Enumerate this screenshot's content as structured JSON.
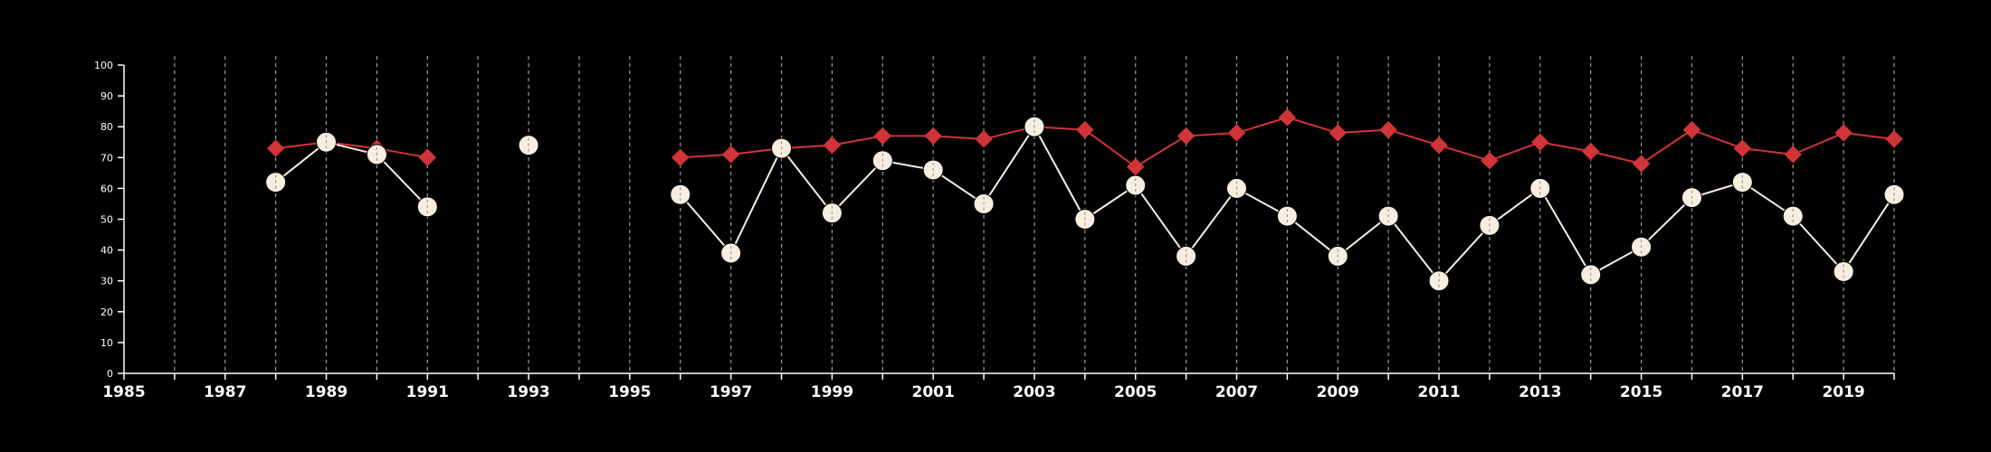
{
  "chart_data": {
    "type": "line",
    "title": "",
    "xlabel": "",
    "ylabel": "",
    "xlim": [
      1985,
      2020
    ],
    "ylim": [
      0,
      100
    ],
    "y_ticks": [
      "0",
      "10",
      "20",
      "30",
      "40",
      "50",
      "60",
      "70",
      "80",
      "90",
      "100"
    ],
    "x_ticks": [
      "1985",
      "1987",
      "1989",
      "1991",
      "1993",
      "1995",
      "1997",
      "1999",
      "2001",
      "2003",
      "2005",
      "2007",
      "2009",
      "2011",
      "2013",
      "2015",
      "2017",
      "2019"
    ],
    "grid": "vertical dashed at each year",
    "background": "#000000",
    "series": [
      {
        "color": "#d13438",
        "marker": "diamond",
        "points": [
          [
            1988,
            73
          ],
          [
            1989,
            75
          ],
          [
            1990,
            73
          ],
          [
            1991,
            70
          ],
          [
            1993,
            74
          ],
          [
            1996,
            70
          ],
          [
            1997,
            71
          ],
          [
            1998,
            73
          ],
          [
            1999,
            74
          ],
          [
            2000,
            77
          ],
          [
            2001,
            77
          ],
          [
            2002,
            76
          ],
          [
            2003,
            80
          ],
          [
            2004,
            79
          ],
          [
            2005,
            67
          ],
          [
            2006,
            77
          ],
          [
            2007,
            78
          ],
          [
            2008,
            83
          ],
          [
            2009,
            78
          ],
          [
            2010,
            79
          ],
          [
            2011,
            74
          ],
          [
            2012,
            69
          ],
          [
            2013,
            75
          ],
          [
            2014,
            72
          ],
          [
            2015,
            68
          ],
          [
            2016,
            79
          ],
          [
            2017,
            73
          ],
          [
            2018,
            71
          ],
          [
            2019,
            78
          ],
          [
            2020,
            76
          ]
        ]
      },
      {
        "color": "#f7eee0",
        "marker": "circle",
        "points": [
          [
            1988,
            62
          ],
          [
            1989,
            75
          ],
          [
            1990,
            71
          ],
          [
            1991,
            54
          ],
          [
            1993,
            74
          ],
          [
            1996,
            58
          ],
          [
            1997,
            39
          ],
          [
            1998,
            73
          ],
          [
            1999,
            52
          ],
          [
            2000,
            69
          ],
          [
            2001,
            66
          ],
          [
            2002,
            55
          ],
          [
            2003,
            80
          ],
          [
            2004,
            50
          ],
          [
            2005,
            61
          ],
          [
            2006,
            38
          ],
          [
            2007,
            60
          ],
          [
            2008,
            51
          ],
          [
            2009,
            38
          ],
          [
            2010,
            51
          ],
          [
            2011,
            30
          ],
          [
            2012,
            48
          ],
          [
            2013,
            60
          ],
          [
            2014,
            32
          ],
          [
            2015,
            41
          ],
          [
            2016,
            57
          ],
          [
            2017,
            62
          ],
          [
            2018,
            51
          ],
          [
            2019,
            33
          ],
          [
            2020,
            58
          ]
        ]
      }
    ]
  }
}
